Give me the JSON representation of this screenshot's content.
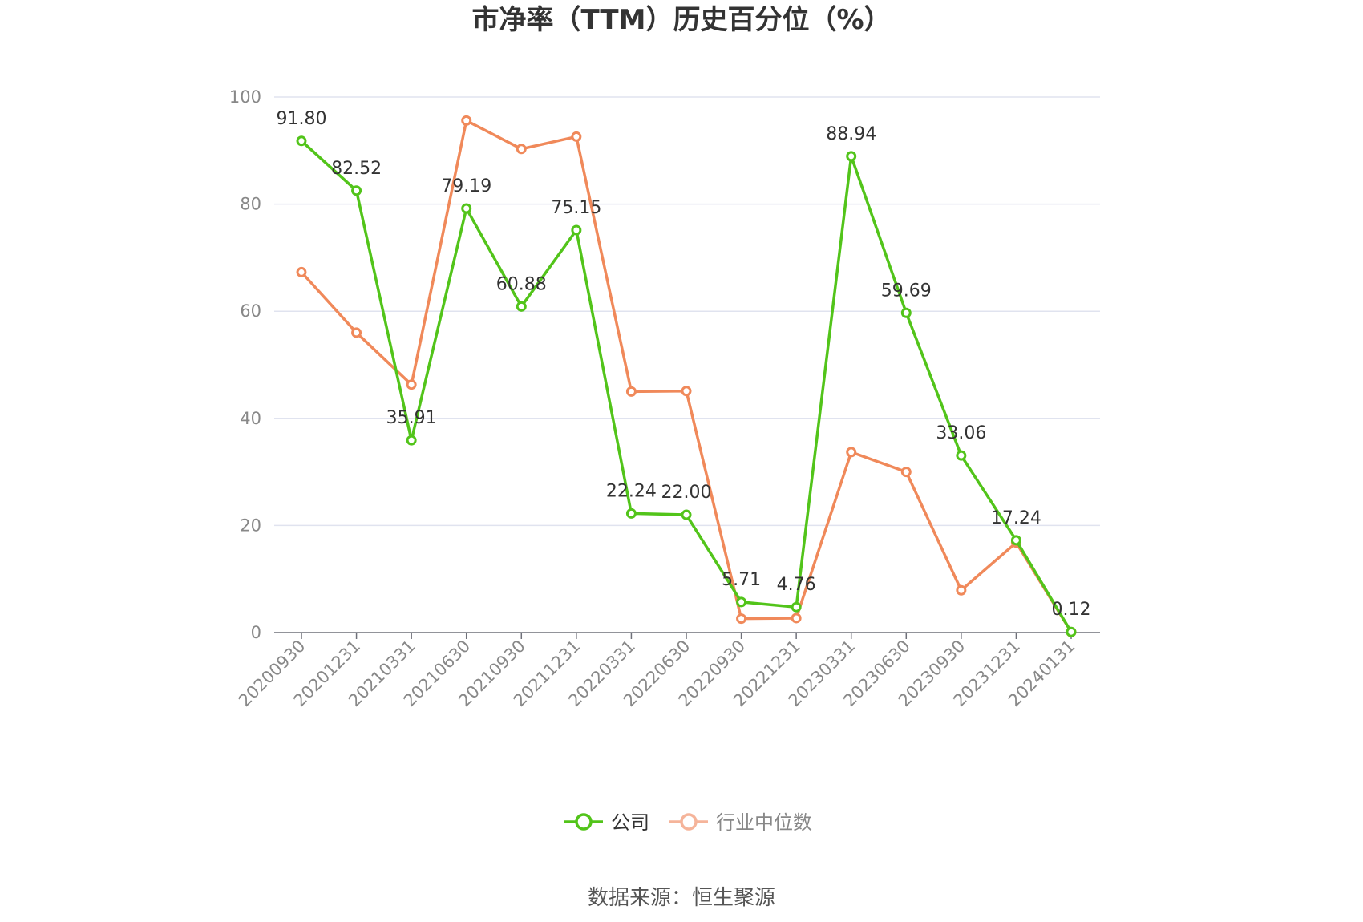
{
  "chart_data": {
    "type": "line",
    "title": "市净率（TTM）历史百分位（%）",
    "categories": [
      "20200930",
      "20201231",
      "20210331",
      "20210630",
      "20210930",
      "20211231",
      "20220331",
      "20220630",
      "20220930",
      "20221231",
      "20230331",
      "20230630",
      "20230930",
      "20231231",
      "20240131"
    ],
    "ylim": [
      0,
      100
    ],
    "yticks": [
      0,
      20,
      40,
      60,
      80,
      100
    ],
    "grid": true,
    "legend_position": "bottom-center",
    "series": [
      {
        "name": "公司",
        "color": "#52c41a",
        "values": [
          91.8,
          82.52,
          35.91,
          79.19,
          60.88,
          75.15,
          22.24,
          22.0,
          5.71,
          4.76,
          88.94,
          59.69,
          33.06,
          17.24,
          0.12
        ],
        "labels": [
          "91.80",
          "82.52",
          "35.91",
          "79.19",
          "60.88",
          "75.15",
          "22.24",
          "22.00",
          "5.71",
          "4.76",
          "88.94",
          "59.69",
          "33.06",
          "17.24",
          "0.12"
        ]
      },
      {
        "name": "行业中位数",
        "color": "#f0895a",
        "values": [
          67.3,
          56.0,
          46.3,
          95.6,
          90.3,
          92.6,
          45.0,
          45.1,
          2.6,
          2.7,
          33.7,
          30.0,
          7.9,
          16.8,
          0.1
        ]
      }
    ],
    "source": "数据来源：恒生聚源"
  }
}
